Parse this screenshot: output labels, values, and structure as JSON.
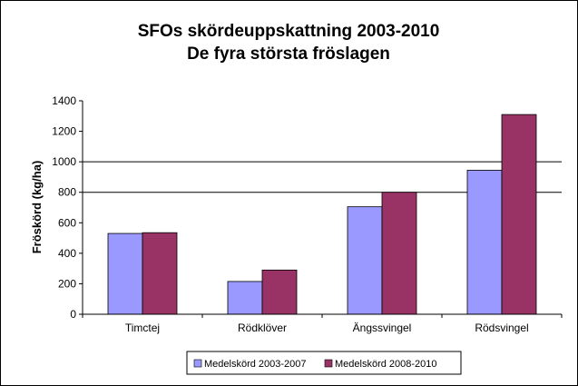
{
  "chart_data": {
    "type": "bar",
    "title_lines": [
      "SFOs skördeuppskattning 2003-2010",
      "De fyra största fröslagen"
    ],
    "ylabel": "Fröskörd (kg/ha)",
    "xlabel": "",
    "categories": [
      "Timctej",
      "Rödklöver",
      "Ängssvingel",
      "Rödsvingel"
    ],
    "ylim": [
      0,
      1400
    ],
    "yticks": [
      0,
      200,
      400,
      600,
      800,
      1000,
      1200,
      1400
    ],
    "gridlines_at": [
      800,
      1000
    ],
    "legend_position": "bottom-right",
    "series": [
      {
        "name": "Medelskörd 2003-2007",
        "color": "#9999ff",
        "values": [
          530,
          215,
          705,
          945
        ]
      },
      {
        "name": "Medelskörd 2008-2010",
        "color": "#993366",
        "values": [
          535,
          290,
          800,
          1310
        ]
      }
    ]
  }
}
